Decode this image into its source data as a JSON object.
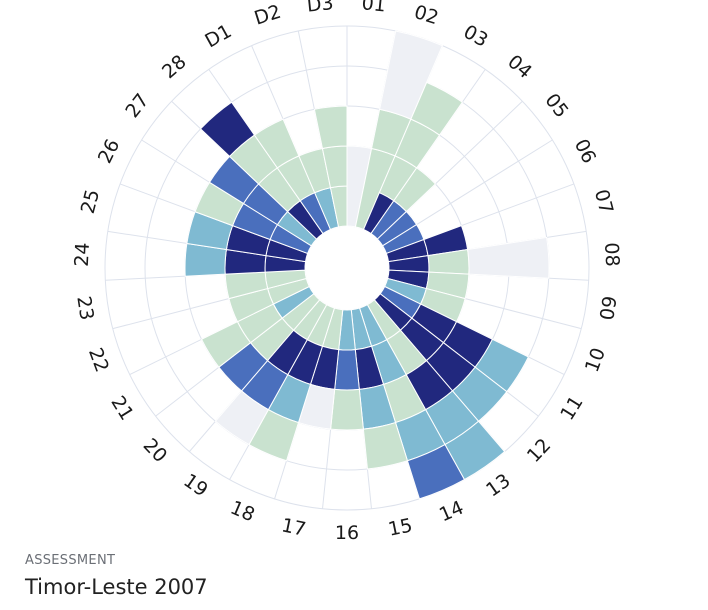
{
  "caption": "ASSESSMENT",
  "title": "Timor-Leste 2007",
  "chart_data": {
    "type": "polar-bar",
    "categories": [
      "01",
      "02",
      "03",
      "04",
      "05",
      "06",
      "07",
      "08",
      "09",
      "10",
      "11",
      "12",
      "13",
      "14",
      "15",
      "16",
      "17",
      "18",
      "19",
      "20",
      "21",
      "22",
      "23",
      "24",
      "25",
      "26",
      "27",
      "28",
      "D1",
      "D2",
      "D3"
    ],
    "rings": 5,
    "stacks": [
      [
        [
          "#eef0f5",
          2
        ]
      ],
      [
        [
          "#c9e2cf",
          2
        ],
        [
          "#c9e2cf",
          1
        ],
        [
          "#eef0f5",
          2
        ]
      ],
      [
        [
          "#21287e",
          1
        ],
        [
          "#c9e2cf",
          1
        ],
        [
          "#c9e2cf",
          1
        ],
        [
          "#c9e2cf",
          1
        ]
      ],
      [
        [
          "#4a6fbd",
          1
        ],
        [
          "#c9e2cf",
          1
        ]
      ],
      [
        [
          "#4a6fbd",
          1
        ]
      ],
      [
        [
          "#4a6fbd",
          1
        ]
      ],
      [
        [
          "#21287e",
          1
        ],
        [
          "#21287e",
          1
        ]
      ],
      [
        [
          "#21287e",
          1
        ],
        [
          "#c9e2cf",
          1
        ],
        [
          "#eef0f5",
          2
        ]
      ],
      [
        [
          "#21287e",
          1
        ],
        [
          "#c9e2cf",
          1
        ]
      ],
      [
        [
          "#7fbad2",
          1
        ],
        [
          "#c9e2cf",
          1
        ]
      ],
      [
        [
          "#4a6fbd",
          1
        ],
        [
          "#21287e",
          1
        ],
        [
          "#21287e",
          1
        ],
        [
          "#7fbad2",
          1
        ]
      ],
      [
        [
          "#21287e",
          1
        ],
        [
          "#21287e",
          1
        ],
        [
          "#21287e",
          1
        ],
        [
          "#7fbad2",
          1
        ]
      ],
      [
        [
          "#c9e2cf",
          1
        ],
        [
          "#c9e2cf",
          1
        ],
        [
          "#21287e",
          1
        ],
        [
          "#7fbad2",
          1
        ],
        [
          "#7fbad2",
          1
        ]
      ],
      [
        [
          "#7fbad2",
          1
        ],
        [
          "#7fbad2",
          1
        ],
        [
          "#c9e2cf",
          1
        ],
        [
          "#7fbad2",
          1
        ],
        [
          "#4a6fbd",
          1
        ]
      ],
      [
        [
          "#7fbad2",
          1
        ],
        [
          "#21287e",
          1
        ],
        [
          "#7fbad2",
          1
        ],
        [
          "#c9e2cf",
          1
        ]
      ],
      [
        [
          "#7fbad2",
          1
        ],
        [
          "#4a6fbd",
          1
        ],
        [
          "#c9e2cf",
          1
        ]
      ],
      [
        [
          "#c9e2cf",
          1
        ],
        [
          "#21287e",
          1
        ],
        [
          "#eef0f5",
          1
        ]
      ],
      [
        [
          "#c9e2cf",
          1
        ],
        [
          "#21287e",
          1
        ],
        [
          "#7fbad2",
          1
        ],
        [
          "#c9e2cf",
          1
        ]
      ],
      [
        [
          "#c9e2cf",
          1
        ],
        [
          "#21287e",
          1
        ],
        [
          "#4a6fbd",
          1
        ],
        [
          "#eef0f5",
          1
        ]
      ],
      [
        [
          "#c9e2cf",
          1
        ],
        [
          "#c9e2cf",
          1
        ],
        [
          "#4a6fbd",
          1
        ]
      ],
      [
        [
          "#7fbad2",
          1
        ],
        [
          "#c9e2cf",
          1
        ],
        [
          "#c9e2cf",
          1
        ]
      ],
      [
        [
          "#c9e2cf",
          1
        ],
        [
          "#c9e2cf",
          1
        ]
      ],
      [
        [
          "#c9e2cf",
          1
        ],
        [
          "#c9e2cf",
          1
        ]
      ],
      [
        [
          "#21287e",
          1
        ],
        [
          "#21287e",
          1
        ],
        [
          "#7fbad2",
          1
        ]
      ],
      [
        [
          "#21287e",
          1
        ],
        [
          "#21287e",
          1
        ],
        [
          "#7fbad2",
          1
        ]
      ],
      [
        [
          "#4a6fbd",
          1
        ],
        [
          "#4a6fbd",
          1
        ],
        [
          "#c9e2cf",
          1
        ]
      ],
      [
        [
          "#7fbad2",
          1
        ],
        [
          "#4a6fbd",
          1
        ],
        [
          "#4a6fbd",
          1
        ]
      ],
      [
        [
          "#21287e",
          1
        ],
        [
          "#c9e2cf",
          1
        ],
        [
          "#c9e2cf",
          1
        ],
        [
          "#21287e",
          1
        ]
      ],
      [
        [
          "#4a6fbd",
          1
        ],
        [
          "#c9e2cf",
          1
        ],
        [
          "#c9e2cf",
          1
        ]
      ],
      [
        [
          "#7fbad2",
          1
        ],
        [
          "#c9e2cf",
          1
        ]
      ],
      [
        [
          "#c9e2cf",
          1
        ],
        [
          "#c9e2cf",
          1
        ],
        [
          "#c9e2cf",
          1
        ]
      ]
    ]
  }
}
